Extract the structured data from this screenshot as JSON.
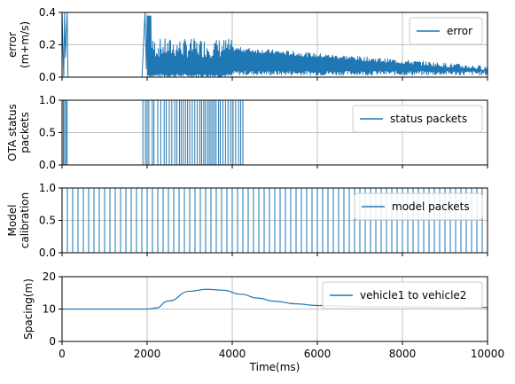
{
  "chart_data": [
    {
      "type": "line",
      "ylabel": "error\n(m+m/s)",
      "xlim": [
        0,
        10000
      ],
      "ylim": [
        0,
        0.4
      ],
      "yticks": [
        "0.0",
        "0.2",
        "0.4"
      ],
      "xticks": [
        0,
        2000,
        4000,
        6000,
        8000,
        10000
      ],
      "grid": true,
      "legend_position": "top-right",
      "color": "#1f77b4",
      "series": [
        {
          "name": "error",
          "description_points": [
            {
              "x": 0,
              "y": 0.4
            },
            {
              "x": 100,
              "y": 0.12
            },
            {
              "x": 150,
              "y": 0.4
            },
            {
              "x": 1900,
              "y": 0.0
            },
            {
              "x": 2000,
              "y": 0.4
            },
            {
              "x": 2100,
              "y": 0.22
            },
            {
              "x": 3000,
              "y": 0.2
            },
            {
              "x": 3500,
              "y": 0.22
            },
            {
              "x": 4000,
              "y": 0.15
            },
            {
              "x": 5000,
              "y": 0.12
            },
            {
              "x": 6000,
              "y": 0.1
            },
            {
              "x": 8000,
              "y": 0.07
            },
            {
              "x": 10000,
              "y": 0.04
            }
          ]
        }
      ]
    },
    {
      "type": "line",
      "ylabel": "OTA status\npackets",
      "xlim": [
        0,
        10000
      ],
      "ylim": [
        0,
        1.0
      ],
      "yticks": [
        "0.0",
        "0.5",
        "1.0"
      ],
      "xticks": [
        0,
        2000,
        4000,
        6000,
        8000,
        10000
      ],
      "grid": true,
      "legend_position": "top-right",
      "color": "#1f77b4",
      "series": [
        {
          "name": "status packets",
          "pulse_times": [
            0,
            30,
            60,
            90,
            120,
            1900,
            1960,
            2000,
            2040,
            2120,
            2160,
            2250,
            2320,
            2400,
            2450,
            2520,
            2580,
            2650,
            2700,
            2760,
            2800,
            2850,
            2900,
            2950,
            3000,
            3060,
            3120,
            3180,
            3240,
            3280,
            3330,
            3370,
            3420,
            3460,
            3500,
            3540,
            3580,
            3620,
            3680,
            3720,
            3780,
            3840,
            3900,
            3960,
            4020,
            4080,
            4150,
            4200,
            4250
          ]
        }
      ]
    },
    {
      "type": "line",
      "ylabel": "Model\ncalibration",
      "xlim": [
        0,
        10000
      ],
      "ylim": [
        0,
        1.0
      ],
      "yticks": [
        "0.0",
        "0.5",
        "1.0"
      ],
      "xticks": [
        0,
        2000,
        4000,
        6000,
        8000,
        10000
      ],
      "grid": true,
      "legend_position": "top-right",
      "color": "#1f77b4",
      "series": [
        {
          "name": "model packets",
          "pulse_interval": 125,
          "pulse_start": 0,
          "pulse_end": 10000
        }
      ]
    },
    {
      "type": "line",
      "xlabel": "Time(ms)",
      "ylabel": "Spacing(m)",
      "xlim": [
        0,
        10000
      ],
      "ylim": [
        0,
        20
      ],
      "yticks": [
        "0",
        "10",
        "20"
      ],
      "xticks": [
        0,
        2000,
        4000,
        6000,
        8000,
        10000
      ],
      "xtick_labels": [
        "0",
        "2000",
        "4000",
        "6000",
        "8000",
        "10000"
      ],
      "grid": true,
      "legend_position": "top-right",
      "color": "#1f77b4",
      "series": [
        {
          "name": "vehicle1 to vehicle2",
          "x": [
            0,
            1000,
            2000,
            2200,
            2500,
            3000,
            3400,
            3800,
            4200,
            4600,
            5000,
            5500,
            6000,
            7000,
            8000,
            9000,
            10000
          ],
          "y": [
            10,
            10,
            10,
            10.3,
            12.5,
            15.5,
            16.1,
            15.8,
            14.6,
            13.4,
            12.4,
            11.6,
            11.1,
            10.8,
            10.7,
            10.6,
            10.5
          ]
        }
      ]
    }
  ]
}
